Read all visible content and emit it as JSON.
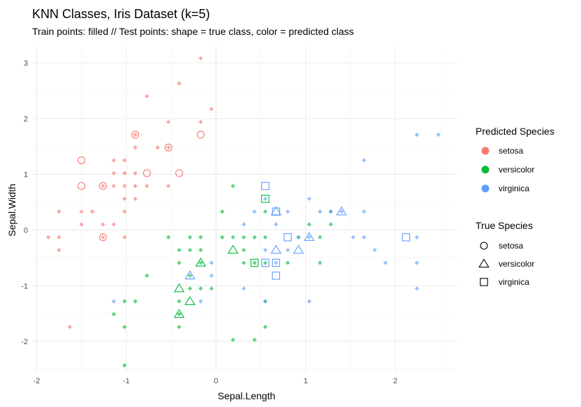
{
  "chart_data": {
    "type": "scatter",
    "title": "KNN Classes, Iris Dataset (k=5)",
    "subtitle": "Train points: filled // Test points: shape = true class, color = predicted class",
    "xlabel": "Sepal.Length",
    "ylabel": "Sepal.Width",
    "xlim": [
      -2.05,
      2.7
    ],
    "ylim": [
      -2.55,
      3.3
    ],
    "x_ticks": [
      -2,
      -1,
      0,
      1,
      2
    ],
    "y_ticks": [
      -2,
      -1,
      0,
      1,
      2,
      3
    ],
    "x_tick_labels": [
      "-2",
      "-1",
      "0",
      "1",
      "2"
    ],
    "y_tick_labels": [
      "-2",
      "-1",
      "0",
      "1",
      "2",
      "3"
    ],
    "grid": true,
    "legend_placement": "right",
    "colors": {
      "setosa": "#F8766D",
      "versicolor": "#00BA38",
      "virginica": "#619CFF"
    },
    "legend_color": {
      "title": "Predicted Species",
      "entries": [
        {
          "label": "setosa",
          "color": "#F8766D"
        },
        {
          "label": "versicolor",
          "color": "#00BA38"
        },
        {
          "label": "virginica",
          "color": "#619CFF"
        }
      ]
    },
    "legend_shape": {
      "title": "True Species",
      "entries": [
        {
          "label": "setosa",
          "shape": "circle"
        },
        {
          "label": "versicolor",
          "shape": "triangle"
        },
        {
          "label": "virginica",
          "shape": "square"
        }
      ]
    },
    "train_points": [
      {
        "class": "setosa",
        "points": [
          [
            -0.17,
            3.08
          ],
          [
            -0.41,
            2.63
          ],
          [
            -0.77,
            2.4
          ],
          [
            -0.05,
            2.17
          ],
          [
            -0.53,
            1.94
          ],
          [
            -0.17,
            1.94
          ],
          [
            -0.65,
            1.48
          ],
          [
            -0.9,
            1.48
          ],
          [
            -1.02,
            1.25
          ],
          [
            -1.14,
            1.25
          ],
          [
            -1.02,
            1.02
          ],
          [
            -1.14,
            1.02
          ],
          [
            -0.9,
            1.02
          ],
          [
            -1.02,
            0.79
          ],
          [
            -1.14,
            0.79
          ],
          [
            -0.9,
            0.79
          ],
          [
            -0.53,
            0.79
          ],
          [
            -1.26,
            0.79
          ],
          [
            -0.77,
            0.79
          ],
          [
            -1.02,
            0.56
          ],
          [
            -0.9,
            0.56
          ],
          [
            -1.02,
            0.33
          ],
          [
            -1.75,
            0.33
          ],
          [
            -1.5,
            0.33
          ],
          [
            -1.38,
            0.33
          ],
          [
            -1.26,
            0.1
          ],
          [
            -1.5,
            0.1
          ],
          [
            -1.14,
            0.1
          ],
          [
            -1.87,
            -0.13
          ],
          [
            -1.75,
            -0.13
          ],
          [
            -1.26,
            -0.13
          ],
          [
            -1.02,
            -0.13
          ],
          [
            -1.75,
            -0.36
          ],
          [
            -1.63,
            -1.74
          ],
          [
            -0.53,
            1.48
          ],
          [
            -0.9,
            1.71
          ]
        ]
      },
      {
        "class": "versicolor",
        "points": [
          [
            0.19,
            0.79
          ],
          [
            0.07,
            0.33
          ],
          [
            -0.53,
            -0.13
          ],
          [
            -0.29,
            -0.13
          ],
          [
            -0.17,
            -0.13
          ],
          [
            0.07,
            -0.13
          ],
          [
            0.19,
            -0.13
          ],
          [
            0.31,
            -0.13
          ],
          [
            0.43,
            -0.13
          ],
          [
            0.55,
            -0.13
          ],
          [
            0.92,
            -0.13
          ],
          [
            1.16,
            -0.13
          ],
          [
            -0.29,
            -0.36
          ],
          [
            -0.41,
            -0.36
          ],
          [
            -0.17,
            -0.36
          ],
          [
            0.31,
            -0.36
          ],
          [
            -0.41,
            -0.59
          ],
          [
            -0.17,
            -0.59
          ],
          [
            0.31,
            -0.59
          ],
          [
            0.43,
            -0.59
          ],
          [
            0.55,
            -0.59
          ],
          [
            0.8,
            -0.59
          ],
          [
            1.16,
            -0.59
          ],
          [
            -1.02,
            -1.28
          ],
          [
            -0.9,
            -1.28
          ],
          [
            -0.41,
            -1.28
          ],
          [
            0.55,
            -1.28
          ],
          [
            -1.14,
            -1.51
          ],
          [
            -0.41,
            -1.51
          ],
          [
            -1.02,
            -1.74
          ],
          [
            -0.41,
            -1.74
          ],
          [
            0.55,
            -1.74
          ],
          [
            0.19,
            -1.97
          ],
          [
            0.43,
            -1.97
          ],
          [
            -1.02,
            -2.43
          ],
          [
            -0.77,
            -0.82
          ],
          [
            -0.29,
            -0.82
          ],
          [
            -0.29,
            -1.05
          ],
          [
            -0.05,
            -1.05
          ],
          [
            0.55,
            0.33
          ],
          [
            1.04,
            0.1
          ],
          [
            1.28,
            0.1
          ],
          [
            1.28,
            0.33
          ],
          [
            -0.17,
            -1.05
          ]
        ]
      },
      {
        "class": "virginica",
        "points": [
          [
            2.24,
            1.71
          ],
          [
            2.48,
            1.71
          ],
          [
            1.65,
            1.25
          ],
          [
            1.04,
            0.56
          ],
          [
            0.55,
            0.56
          ],
          [
            0.8,
            0.33
          ],
          [
            1.16,
            0.33
          ],
          [
            1.28,
            0.33
          ],
          [
            1.4,
            0.33
          ],
          [
            1.65,
            0.33
          ],
          [
            0.43,
            0.33
          ],
          [
            0.67,
            0.1
          ],
          [
            0.31,
            0.1
          ],
          [
            0.92,
            -0.13
          ],
          [
            1.04,
            -0.13
          ],
          [
            1.53,
            -0.13
          ],
          [
            1.65,
            -0.13
          ],
          [
            2.24,
            -0.13
          ],
          [
            0.55,
            -0.36
          ],
          [
            0.8,
            -0.36
          ],
          [
            1.77,
            -0.36
          ],
          [
            1.89,
            -0.59
          ],
          [
            2.24,
            -0.59
          ],
          [
            0.67,
            -0.59
          ],
          [
            -0.05,
            -0.59
          ],
          [
            -0.05,
            -0.82
          ],
          [
            0.31,
            -1.05
          ],
          [
            2.24,
            -1.05
          ],
          [
            -1.14,
            -1.28
          ],
          [
            -0.17,
            -1.28
          ],
          [
            0.55,
            -1.28
          ],
          [
            1.04,
            -1.28
          ]
        ]
      }
    ],
    "test_points": [
      {
        "x": -0.9,
        "y": 1.71,
        "true_class": "setosa",
        "predicted_class": "setosa"
      },
      {
        "x": -0.17,
        "y": 1.71,
        "true_class": "setosa",
        "predicted_class": "setosa"
      },
      {
        "x": -0.53,
        "y": 1.48,
        "true_class": "setosa",
        "predicted_class": "setosa"
      },
      {
        "x": -1.5,
        "y": 1.25,
        "true_class": "setosa",
        "predicted_class": "setosa"
      },
      {
        "x": -0.77,
        "y": 1.02,
        "true_class": "setosa",
        "predicted_class": "setosa"
      },
      {
        "x": -0.41,
        "y": 1.02,
        "true_class": "setosa",
        "predicted_class": "setosa"
      },
      {
        "x": -1.5,
        "y": 0.79,
        "true_class": "setosa",
        "predicted_class": "setosa"
      },
      {
        "x": -1.26,
        "y": 0.79,
        "true_class": "setosa",
        "predicted_class": "setosa"
      },
      {
        "x": -1.26,
        "y": -0.13,
        "true_class": "setosa",
        "predicted_class": "setosa"
      },
      {
        "x": 0.67,
        "y": 0.33,
        "true_class": "versicolor",
        "predicted_class": "virginica"
      },
      {
        "x": 1.4,
        "y": 0.33,
        "true_class": "versicolor",
        "predicted_class": "virginica"
      },
      {
        "x": 1.04,
        "y": -0.13,
        "true_class": "versicolor",
        "predicted_class": "virginica"
      },
      {
        "x": 0.19,
        "y": -0.36,
        "true_class": "versicolor",
        "predicted_class": "versicolor"
      },
      {
        "x": 0.67,
        "y": -0.36,
        "true_class": "versicolor",
        "predicted_class": "virginica"
      },
      {
        "x": 0.92,
        "y": -0.36,
        "true_class": "versicolor",
        "predicted_class": "virginica"
      },
      {
        "x": -0.17,
        "y": -0.59,
        "true_class": "versicolor",
        "predicted_class": "versicolor"
      },
      {
        "x": -0.29,
        "y": -0.82,
        "true_class": "versicolor",
        "predicted_class": "virginica"
      },
      {
        "x": -0.41,
        "y": -1.05,
        "true_class": "versicolor",
        "predicted_class": "versicolor"
      },
      {
        "x": -0.29,
        "y": -1.28,
        "true_class": "versicolor",
        "predicted_class": "versicolor"
      },
      {
        "x": -0.41,
        "y": -1.51,
        "true_class": "versicolor",
        "predicted_class": "versicolor"
      },
      {
        "x": 0.55,
        "y": 0.79,
        "true_class": "virginica",
        "predicted_class": "virginica"
      },
      {
        "x": 0.55,
        "y": 0.56,
        "true_class": "virginica",
        "predicted_class": "versicolor"
      },
      {
        "x": 0.67,
        "y": 0.33,
        "true_class": "virginica",
        "predicted_class": "virginica"
      },
      {
        "x": 0.8,
        "y": -0.13,
        "true_class": "virginica",
        "predicted_class": "virginica"
      },
      {
        "x": 2.12,
        "y": -0.13,
        "true_class": "virginica",
        "predicted_class": "virginica"
      },
      {
        "x": 0.43,
        "y": -0.59,
        "true_class": "virginica",
        "predicted_class": "versicolor"
      },
      {
        "x": 0.55,
        "y": -0.59,
        "true_class": "virginica",
        "predicted_class": "virginica"
      },
      {
        "x": 0.67,
        "y": -0.59,
        "true_class": "virginica",
        "predicted_class": "virginica"
      },
      {
        "x": 0.67,
        "y": -0.82,
        "true_class": "virginica",
        "predicted_class": "virginica"
      }
    ]
  }
}
